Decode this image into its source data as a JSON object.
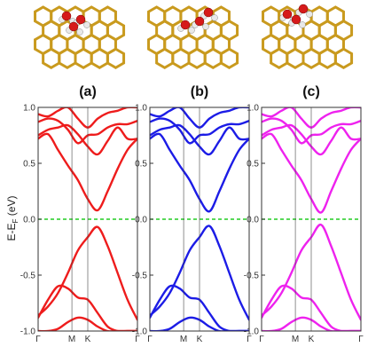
{
  "figure": {
    "ylabel_main": "E-E",
    "ylabel_sub": "F",
    "ylabel_unit": " (eV)"
  },
  "chart_data": [
    {
      "type": "line",
      "label": "(a)",
      "color": "#ee1c1c",
      "xticks": [
        "Γ",
        "M",
        "K",
        "Γ"
      ],
      "ylim": [
        -1.0,
        1.0
      ],
      "yticks": [
        "1.0",
        "0.5",
        "0.0",
        "-0.5",
        "-1.0"
      ],
      "fermi_line_color": "#22cc22",
      "x": [
        0,
        0.1,
        0.2,
        0.3,
        0.4,
        0.5,
        0.6,
        0.7,
        0.8,
        0.9,
        1.0
      ],
      "series": [
        {
          "values": [
            0.94,
            0.92,
            0.97,
            1.0,
            0.9,
            0.82,
            0.9,
            0.95,
            0.97,
            1.0,
            1.0
          ]
        },
        {
          "values": [
            0.87,
            0.9,
            0.88,
            0.8,
            0.68,
            0.75,
            0.76,
            0.82,
            0.85,
            0.85,
            0.88
          ]
        },
        {
          "values": [
            0.75,
            0.8,
            0.82,
            0.84,
            0.76,
            0.65,
            0.58,
            0.7,
            0.82,
            0.72,
            0.72
          ]
        },
        {
          "values": [
            0.72,
            0.76,
            0.62,
            0.48,
            0.35,
            0.18,
            0.08,
            0.25,
            0.45,
            0.62,
            0.72
          ]
        },
        {
          "values": [
            -0.86,
            -0.78,
            -0.66,
            -0.48,
            -0.28,
            -0.16,
            -0.07,
            -0.24,
            -0.48,
            -0.72,
            -0.9
          ]
        },
        {
          "values": [
            -0.88,
            -0.72,
            -0.6,
            -0.62,
            -0.7,
            -0.72,
            -0.84,
            -0.96,
            -1.0,
            -1.0,
            -1.0
          ]
        },
        {
          "values": [
            -1.0,
            -1.0,
            -0.98,
            -0.92,
            -0.88,
            -0.9,
            -0.96,
            -1.0,
            -1.0,
            -1.0,
            -1.0
          ]
        }
      ]
    },
    {
      "type": "line",
      "label": "(b)",
      "color": "#1c1ce6",
      "xticks": [
        "Γ",
        "M",
        "K",
        "Γ"
      ],
      "ylim": [
        -1.0,
        1.0
      ],
      "yticks": [
        "1.0",
        "0.5",
        "0.0",
        "-0.5",
        "-1.0"
      ],
      "fermi_line_color": "#22cc22",
      "x": [
        0,
        0.1,
        0.2,
        0.3,
        0.4,
        0.5,
        0.6,
        0.7,
        0.8,
        0.9,
        1.0
      ],
      "series": [
        {
          "values": [
            0.94,
            0.92,
            0.97,
            1.0,
            0.9,
            0.82,
            0.9,
            0.95,
            0.97,
            1.0,
            1.0
          ]
        },
        {
          "values": [
            0.87,
            0.9,
            0.88,
            0.8,
            0.68,
            0.75,
            0.76,
            0.82,
            0.85,
            0.85,
            0.88
          ]
        },
        {
          "values": [
            0.75,
            0.8,
            0.82,
            0.84,
            0.76,
            0.65,
            0.58,
            0.7,
            0.82,
            0.72,
            0.72
          ]
        },
        {
          "values": [
            0.72,
            0.76,
            0.62,
            0.48,
            0.35,
            0.18,
            0.07,
            0.25,
            0.45,
            0.62,
            0.72
          ]
        },
        {
          "values": [
            -0.86,
            -0.78,
            -0.66,
            -0.48,
            -0.28,
            -0.16,
            -0.06,
            -0.24,
            -0.48,
            -0.72,
            -0.9
          ]
        },
        {
          "values": [
            -0.88,
            -0.72,
            -0.6,
            -0.62,
            -0.7,
            -0.72,
            -0.84,
            -0.96,
            -1.0,
            -1.0,
            -1.0
          ]
        },
        {
          "values": [
            -1.0,
            -1.0,
            -0.98,
            -0.92,
            -0.88,
            -0.9,
            -0.96,
            -1.0,
            -1.0,
            -1.0,
            -1.0
          ]
        }
      ]
    },
    {
      "type": "line",
      "label": "(c)",
      "color": "#ee22ee",
      "xticks": [
        "Γ",
        "M",
        "K",
        "Γ"
      ],
      "ylim": [
        -1.0,
        1.0
      ],
      "yticks": [
        "1.0",
        "0.5",
        "0.0",
        "-0.5",
        "-1.0"
      ],
      "fermi_line_color": "#22cc22",
      "x": [
        0,
        0.1,
        0.2,
        0.3,
        0.4,
        0.5,
        0.6,
        0.7,
        0.8,
        0.9,
        1.0
      ],
      "series": [
        {
          "values": [
            0.94,
            0.92,
            0.97,
            1.0,
            0.9,
            0.82,
            0.9,
            0.95,
            0.97,
            1.0,
            1.0
          ]
        },
        {
          "values": [
            0.87,
            0.9,
            0.88,
            0.8,
            0.68,
            0.75,
            0.76,
            0.82,
            0.85,
            0.85,
            0.88
          ]
        },
        {
          "values": [
            0.75,
            0.8,
            0.82,
            0.84,
            0.76,
            0.65,
            0.58,
            0.7,
            0.82,
            0.72,
            0.72
          ]
        },
        {
          "values": [
            0.72,
            0.76,
            0.62,
            0.48,
            0.35,
            0.18,
            0.06,
            0.25,
            0.45,
            0.62,
            0.72
          ]
        },
        {
          "values": [
            -0.86,
            -0.78,
            -0.66,
            -0.48,
            -0.28,
            -0.16,
            -0.05,
            -0.24,
            -0.48,
            -0.72,
            -0.9
          ]
        },
        {
          "values": [
            -0.88,
            -0.72,
            -0.6,
            -0.62,
            -0.7,
            -0.72,
            -0.84,
            -0.96,
            -1.0,
            -1.0,
            -1.0
          ]
        },
        {
          "values": [
            -1.0,
            -1.0,
            -0.98,
            -0.92,
            -0.88,
            -0.9,
            -0.96,
            -1.0,
            -1.0,
            -1.0,
            -1.0
          ]
        }
      ]
    }
  ],
  "molecules": [
    {
      "panel": "(a)",
      "atoms": "carbon-lattice-with-adsorbed-water-cluster"
    },
    {
      "panel": "(b)",
      "atoms": "carbon-lattice-with-adsorbed-water-cluster"
    },
    {
      "panel": "(c)",
      "atoms": "carbon-lattice-with-adsorbed-water-cluster"
    }
  ]
}
